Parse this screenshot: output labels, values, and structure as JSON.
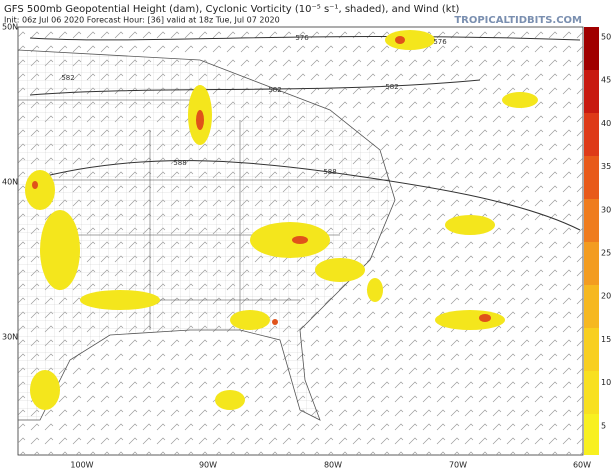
{
  "header": {
    "title": "GFS 500mb Geopotential Height (dam), Cyclonic Vorticity (10⁻⁵ s⁻¹, shaded), and Wind (kt)",
    "subtitle": "Init: 06z Jul 06 2020   Forecast Hour: [36]   valid at 18z Tue, Jul 07 2020",
    "site": "TROPICALTIDBITS.COM"
  },
  "map": {
    "lat_labels": [
      "50N",
      "40N",
      "30N"
    ],
    "lon_labels": [
      "100W",
      "90W",
      "80W",
      "70W",
      "60W"
    ],
    "contour_labels": [
      "576",
      "576",
      "582",
      "582",
      "582",
      "588",
      "588"
    ]
  },
  "colorbar": {
    "ticks": [
      50,
      45,
      40,
      35,
      30,
      25,
      20,
      15,
      10,
      5
    ]
  }
}
